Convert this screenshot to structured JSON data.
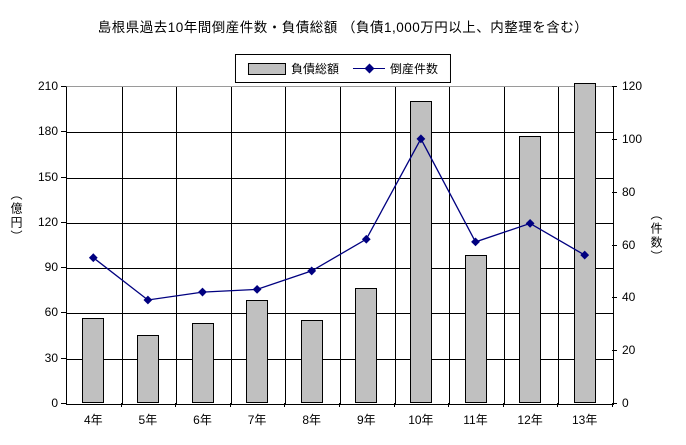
{
  "chart_data": {
    "type": "bar",
    "combo": "bar+line",
    "title": "島根県過去10年間倒産件数・負債総額 （負債1,000万円以上、内整理を含む）",
    "categories": [
      "4年",
      "5年",
      "6年",
      "7年",
      "8年",
      "9年",
      "10年",
      "11年",
      "12年",
      "13年"
    ],
    "series": [
      {
        "name": "負債総額",
        "type": "bar",
        "axis": "left",
        "unit": "億円",
        "color": "#c0c0c0",
        "values": [
          56,
          45,
          53,
          68,
          55,
          76,
          200,
          98,
          177,
          212
        ]
      },
      {
        "name": "倒産件数",
        "type": "line",
        "axis": "right",
        "unit": "件",
        "color": "#000080",
        "marker": "diamond",
        "values": [
          55,
          39,
          42,
          43,
          50,
          62,
          100,
          61,
          68,
          56
        ]
      }
    ],
    "left_axis": {
      "label": "（億円）",
      "min": 0,
      "max": 210,
      "step": 30,
      "ticks": [
        0,
        30,
        60,
        90,
        120,
        150,
        180,
        210
      ]
    },
    "right_axis": {
      "label": "（件数）",
      "min": 0,
      "max": 120,
      "step": 20,
      "ticks": [
        0,
        20,
        40,
        60,
        80,
        100,
        120
      ]
    },
    "grid": "both",
    "legend_position": "top-center",
    "colors": {
      "bar_fill": "#c0c0c0",
      "bar_border": "#000000",
      "line": "#000080",
      "grid": "#000000",
      "background": "#ffffff"
    }
  }
}
